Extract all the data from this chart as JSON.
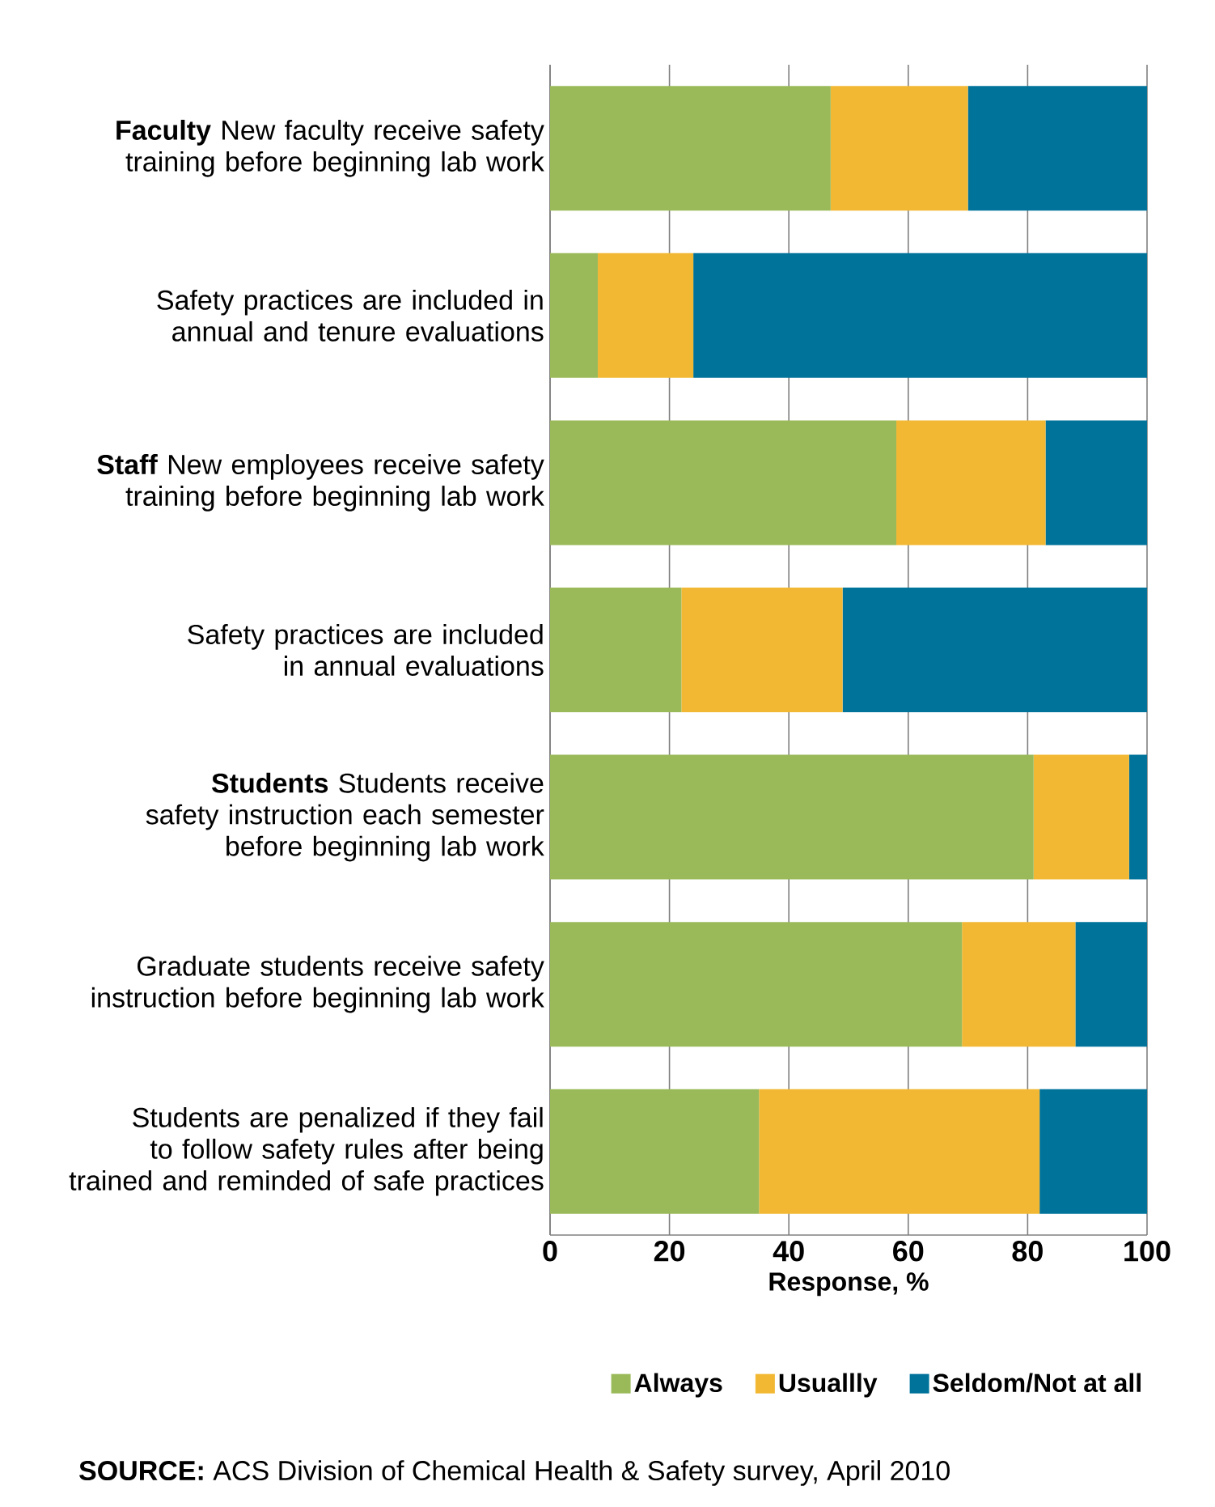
{
  "chart_data": {
    "type": "bar",
    "orientation": "horizontal",
    "stacked": true,
    "categories": [
      "**Faculty** New faculty receive safety training before beginning lab work",
      "Safety practices are included in annual and tenure evaluations",
      "**Staff** New employees receive safety training before beginning lab work",
      "Safety practices are included in annual evaluations",
      "**Students** Students receive safety instruction each semester before beginning lab work",
      "Graduate students receive safety instruction before beginning lab work",
      "Students are penalized if they fail to follow safety rules after being trained and reminded of safe practices"
    ],
    "series": [
      {
        "name": "Always",
        "color": "#9aba5a",
        "values": [
          47,
          8,
          58,
          22,
          81,
          69,
          35
        ]
      },
      {
        "name": "Usuallly",
        "color": "#f2b833",
        "values": [
          23,
          16,
          25,
          27,
          16,
          19,
          47
        ]
      },
      {
        "name": "Seldom/Not at all",
        "color": "#00739a",
        "values": [
          30,
          76,
          17,
          51,
          3,
          12,
          18
        ]
      }
    ],
    "xlim": [
      0,
      100
    ],
    "xticks": [
      0,
      20,
      40,
      60,
      80,
      100
    ],
    "xlabel": "Response, %",
    "grid": "x",
    "legend": "bottom",
    "annotations": [
      "**SOURCE:** ACS Division of Chemical Health & Safety survey, April 2010"
    ]
  }
}
